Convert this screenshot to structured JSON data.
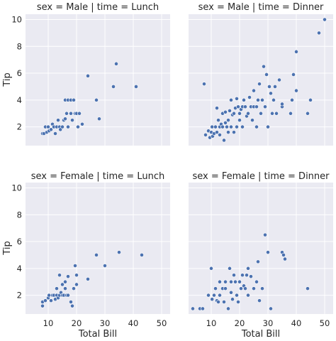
{
  "chart_data": {
    "type": "scatter",
    "xlabel": "Total Bill",
    "ylabel": "Tip",
    "xlim": [
      2,
      53
    ],
    "ylim": [
      0.6,
      10.4
    ],
    "xticks": [
      10,
      20,
      30,
      40,
      50
    ],
    "yticks": [
      2,
      4,
      6,
      8,
      10
    ],
    "grid": true,
    "marker_color": "#4c72b0",
    "panel_color": "#eaeaf2",
    "panels": [
      {
        "title": "sex = Male | time = Lunch",
        "points": [
          [
            8,
            1.5
          ],
          [
            8.5,
            1.5
          ],
          [
            9,
            2
          ],
          [
            9.5,
            1.6
          ],
          [
            10,
            2
          ],
          [
            10.3,
            1.7
          ],
          [
            11,
            1.8
          ],
          [
            11.5,
            2.2
          ],
          [
            12,
            2
          ],
          [
            12.5,
            1.5
          ],
          [
            13,
            2
          ],
          [
            13.5,
            2.5
          ],
          [
            14,
            2
          ],
          [
            14.3,
            1.8
          ],
          [
            15,
            2
          ],
          [
            15.5,
            2.5
          ],
          [
            16,
            4
          ],
          [
            16,
            2.6
          ],
          [
            16.5,
            3
          ],
          [
            17,
            2
          ],
          [
            17,
            4
          ],
          [
            18,
            4
          ],
          [
            18,
            3
          ],
          [
            18.5,
            2.5
          ],
          [
            19,
            4
          ],
          [
            19.5,
            3
          ],
          [
            20,
            3
          ],
          [
            20.5,
            2
          ],
          [
            21,
            3
          ],
          [
            22,
            2.2
          ],
          [
            24,
            5.8
          ],
          [
            27,
            4
          ],
          [
            28,
            2.6
          ],
          [
            33,
            5
          ],
          [
            34,
            6.7
          ],
          [
            41,
            5
          ]
        ]
      },
      {
        "title": "sex = Male | time = Dinner",
        "points": [
          [
            7.5,
            5.2
          ],
          [
            8,
            1.4
          ],
          [
            9,
            1.7
          ],
          [
            9.5,
            1.2
          ],
          [
            10,
            1.6
          ],
          [
            10.3,
            2
          ],
          [
            10.5,
            1.3
          ],
          [
            11,
            1.5
          ],
          [
            11.5,
            2
          ],
          [
            12,
            1.6
          ],
          [
            12,
            3.4
          ],
          [
            12.5,
            2.5
          ],
          [
            13,
            1.4
          ],
          [
            13,
            2
          ],
          [
            13.5,
            2.2
          ],
          [
            14,
            2
          ],
          [
            14,
            3
          ],
          [
            14.5,
            1
          ],
          [
            15,
            2.3
          ],
          [
            15,
            3.1
          ],
          [
            15.5,
            2
          ],
          [
            16,
            1.6
          ],
          [
            16,
            2.5
          ],
          [
            16.5,
            3.2
          ],
          [
            17,
            2
          ],
          [
            17,
            4
          ],
          [
            17.5,
            2.9
          ],
          [
            18,
            3
          ],
          [
            18,
            1.6
          ],
          [
            18.5,
            3.4
          ],
          [
            19,
            2
          ],
          [
            19,
            4.1
          ],
          [
            19.5,
            3.5
          ],
          [
            20,
            2.5
          ],
          [
            20,
            3
          ],
          [
            20.5,
            3.3
          ],
          [
            21,
            3.5
          ],
          [
            21,
            2
          ],
          [
            21.5,
            4
          ],
          [
            22,
            3.5
          ],
          [
            22.5,
            2.8
          ],
          [
            23,
            3
          ],
          [
            23.5,
            4.2
          ],
          [
            24,
            3.5
          ],
          [
            24.5,
            2.5
          ],
          [
            25,
            3.5
          ],
          [
            25,
            4.7
          ],
          [
            26,
            2
          ],
          [
            26,
            3.5
          ],
          [
            26.5,
            4
          ],
          [
            27,
            5.2
          ],
          [
            27.5,
            3
          ],
          [
            28,
            4
          ],
          [
            28.5,
            6.5
          ],
          [
            29,
            3.5
          ],
          [
            29.5,
            5.9
          ],
          [
            30,
            2
          ],
          [
            30.5,
            5
          ],
          [
            31,
            4.5
          ],
          [
            31.5,
            3
          ],
          [
            32,
            4
          ],
          [
            32.5,
            5
          ],
          [
            33,
            3
          ],
          [
            34,
            5.5
          ],
          [
            35,
            3.5
          ],
          [
            35,
            3.7
          ],
          [
            38,
            3
          ],
          [
            38.5,
            4
          ],
          [
            39,
            5.9
          ],
          [
            40,
            7.6
          ],
          [
            40,
            4.7
          ],
          [
            44,
            3
          ],
          [
            45,
            4
          ],
          [
            48,
            9
          ],
          [
            50,
            10
          ]
        ]
      },
      {
        "title": "sex = Female | time = Lunch",
        "points": [
          [
            8,
            1.5
          ],
          [
            8,
            1.2
          ],
          [
            9,
            1.6
          ],
          [
            10,
            1.8
          ],
          [
            10.3,
            2
          ],
          [
            11,
            1.6
          ],
          [
            11.5,
            2
          ],
          [
            12,
            2
          ],
          [
            12.5,
            1.7
          ],
          [
            13,
            2
          ],
          [
            13,
            2.5
          ],
          [
            13.5,
            1.8
          ],
          [
            14,
            2
          ],
          [
            14,
            3.5
          ],
          [
            14.5,
            2.2
          ],
          [
            15,
            2
          ],
          [
            15,
            2.8
          ],
          [
            15.5,
            2
          ],
          [
            16,
            3
          ],
          [
            16,
            2.5
          ],
          [
            16.5,
            2
          ],
          [
            17,
            2
          ],
          [
            17,
            3.4
          ],
          [
            18,
            1.5
          ],
          [
            18.5,
            1.2
          ],
          [
            19,
            2.5
          ],
          [
            19.5,
            4.2
          ],
          [
            20,
            3.5
          ],
          [
            20,
            2.8
          ],
          [
            24,
            3.2
          ],
          [
            27,
            5
          ],
          [
            30,
            4.2
          ],
          [
            35,
            5.2
          ],
          [
            43,
            5
          ]
        ]
      },
      {
        "title": "sex = Female | time = Dinner",
        "points": [
          [
            3.5,
            1
          ],
          [
            6,
            1
          ],
          [
            7,
            1
          ],
          [
            9,
            2
          ],
          [
            10,
            4
          ],
          [
            10.3,
            1.7
          ],
          [
            11,
            2
          ],
          [
            11.5,
            2.5
          ],
          [
            12,
            1.6
          ],
          [
            12.5,
            1.5
          ],
          [
            13,
            2
          ],
          [
            13,
            3
          ],
          [
            14,
            2.5
          ],
          [
            14.5,
            1.5
          ],
          [
            15,
            3
          ],
          [
            15,
            2.5
          ],
          [
            16,
            1
          ],
          [
            16.5,
            4
          ],
          [
            17,
            3
          ],
          [
            17,
            2.2
          ],
          [
            17.5,
            1.7
          ],
          [
            18,
            3.5
          ],
          [
            18.5,
            3
          ],
          [
            19,
            2
          ],
          [
            19.5,
            1.5
          ],
          [
            20,
            3
          ],
          [
            20.5,
            2.5
          ],
          [
            21,
            3.5
          ],
          [
            21.5,
            2.7
          ],
          [
            22,
            2.5
          ],
          [
            22.5,
            3.5
          ],
          [
            23,
            4
          ],
          [
            23,
            2
          ],
          [
            24,
            3.4
          ],
          [
            25,
            2.5
          ],
          [
            26,
            3
          ],
          [
            26.5,
            4.5
          ],
          [
            27,
            1.6
          ],
          [
            28,
            2.5
          ],
          [
            29,
            6.5
          ],
          [
            30,
            5.2
          ],
          [
            31,
            1
          ],
          [
            35,
            5.2
          ],
          [
            35.5,
            5
          ],
          [
            36,
            4.7
          ],
          [
            44,
            2.5
          ]
        ]
      }
    ]
  }
}
